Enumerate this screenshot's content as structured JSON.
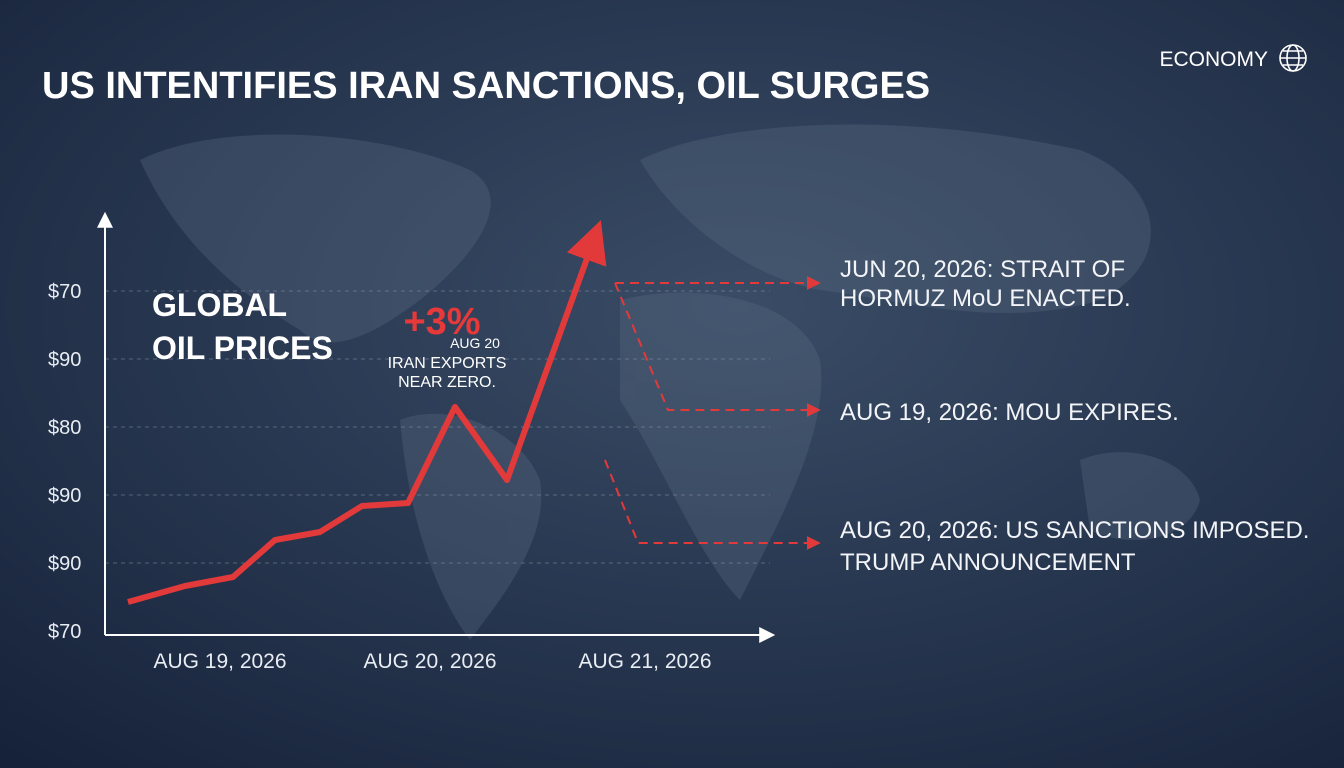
{
  "header": {
    "title": "US INTENTIFIES IRAN SANCTIONS, OIL SURGES",
    "section": "ECONOMY"
  },
  "chart": {
    "label_lines": [
      "GLOBAL",
      "OIL PRICES"
    ],
    "y_axis_labels": [
      "$70",
      "$90",
      "$80",
      "$90",
      "$90",
      "$70"
    ],
    "x_axis_labels": [
      "AUG 19, 2026",
      "AUG 20, 2026",
      "AUG 21, 2026"
    ],
    "callout": {
      "change": "+3%",
      "date": "AUG 20",
      "lines": [
        "IRAN EXPORTS",
        "NEAR ZERO."
      ]
    }
  },
  "events": [
    {
      "lines": [
        "JUN 20, 2026: STRAIT OF",
        "HORMUZ MoU ENACTED."
      ]
    },
    {
      "lines": [
        "AUG 19, 2026: MOU EXPIRES."
      ]
    },
    {
      "lines": [
        "AUG 20, 2026: US SANCTIONS IMPOSED.",
        "TRUMP ANNOUNCEMENT"
      ]
    }
  ]
}
